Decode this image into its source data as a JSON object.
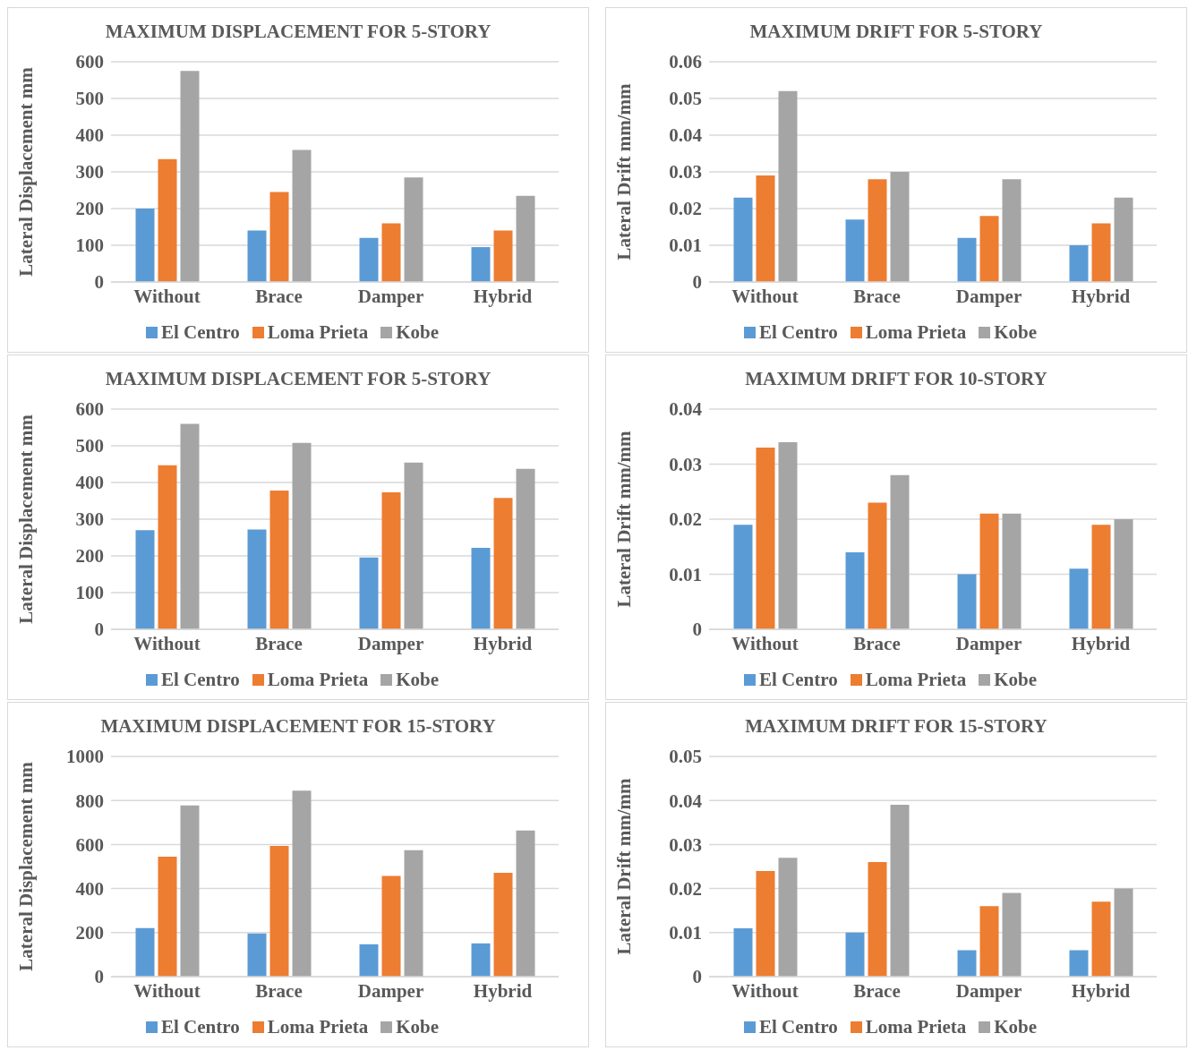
{
  "chart_data": [
    {
      "type": "bar",
      "title": "MAXIMUM DISPLACEMENT FOR 5-STORY",
      "ylabel": "Lateral Displacement mm",
      "categories": [
        "Without",
        "Brace",
        "Damper",
        "Hybrid"
      ],
      "ylim": [
        0,
        600
      ],
      "yticks": [
        0,
        100,
        200,
        300,
        400,
        500,
        600
      ],
      "grid": "y",
      "legend": "bottom",
      "series": [
        {
          "name": "El Centro",
          "color": "#5b9bd5",
          "values": [
            200,
            140,
            120,
            95
          ]
        },
        {
          "name": "Loma Prieta",
          "color": "#ed7d31",
          "values": [
            335,
            245,
            160,
            140
          ]
        },
        {
          "name": "Kobe",
          "color": "#a5a5a5",
          "values": [
            575,
            360,
            285,
            235
          ]
        }
      ]
    },
    {
      "type": "bar",
      "title": "MAXIMUM DRIFT FOR 5-STORY",
      "ylabel": "Lateral Drift  mm/mm",
      "categories": [
        "Without",
        "Brace",
        "Damper",
        "Hybrid"
      ],
      "ylim": [
        0,
        0.06
      ],
      "yticks": [
        0,
        0.01,
        0.02,
        0.03,
        0.04,
        0.05,
        0.06
      ],
      "grid": "y",
      "legend": "bottom",
      "series": [
        {
          "name": "El Centro",
          "color": "#5b9bd5",
          "values": [
            0.023,
            0.017,
            0.012,
            0.01
          ]
        },
        {
          "name": "Loma Prieta",
          "color": "#ed7d31",
          "values": [
            0.029,
            0.028,
            0.018,
            0.016
          ]
        },
        {
          "name": "Kobe",
          "color": "#a5a5a5",
          "values": [
            0.052,
            0.03,
            0.028,
            0.023
          ]
        }
      ]
    },
    {
      "type": "bar",
      "title": "MAXIMUM DISPLACEMENT FOR 5-STORY",
      "ylabel": "Lateral Displacement mm",
      "categories": [
        "Without",
        "Brace",
        "Damper",
        "Hybrid"
      ],
      "ylim": [
        0,
        600
      ],
      "yticks": [
        0,
        100,
        200,
        300,
        400,
        500,
        600
      ],
      "grid": "y",
      "legend": "bottom",
      "series": [
        {
          "name": "El Centro",
          "color": "#5b9bd5",
          "values": [
            270,
            272,
            196,
            222
          ]
        },
        {
          "name": "Loma Prieta",
          "color": "#ed7d31",
          "values": [
            447,
            378,
            373,
            358
          ]
        },
        {
          "name": "Kobe",
          "color": "#a5a5a5",
          "values": [
            560,
            508,
            454,
            437
          ]
        }
      ]
    },
    {
      "type": "bar",
      "title": "MAXIMUM DRIFT FOR 10-STORY",
      "ylabel": "Lateral Drift  mm/mm",
      "categories": [
        "Without",
        "Brace",
        "Damper",
        "Hybrid"
      ],
      "ylim": [
        0,
        0.04
      ],
      "yticks": [
        0,
        0.01,
        0.02,
        0.03,
        0.04
      ],
      "grid": "y",
      "legend": "bottom",
      "series": [
        {
          "name": "El Centro",
          "color": "#5b9bd5",
          "values": [
            0.019,
            0.014,
            0.01,
            0.011
          ]
        },
        {
          "name": "Loma Prieta",
          "color": "#ed7d31",
          "values": [
            0.033,
            0.023,
            0.021,
            0.019
          ]
        },
        {
          "name": "Kobe",
          "color": "#a5a5a5",
          "values": [
            0.034,
            0.028,
            0.021,
            0.02
          ]
        }
      ]
    },
    {
      "type": "bar",
      "title": "MAXIMUM DISPLACEMENT FOR 15-STORY",
      "ylabel": "Lateral Displacement mm",
      "categories": [
        "Without",
        "Brace",
        "Damper",
        "Hybrid"
      ],
      "ylim": [
        0,
        1000
      ],
      "yticks": [
        0,
        200,
        400,
        600,
        800,
        1000
      ],
      "grid": "y",
      "legend": "bottom",
      "series": [
        {
          "name": "El Centro",
          "color": "#5b9bd5",
          "values": [
            221,
            196,
            147,
            151
          ]
        },
        {
          "name": "Loma Prieta",
          "color": "#ed7d31",
          "values": [
            545,
            594,
            457,
            472
          ]
        },
        {
          "name": "Kobe",
          "color": "#a5a5a5",
          "values": [
            777,
            845,
            574,
            664
          ]
        }
      ]
    },
    {
      "type": "bar",
      "title": "MAXIMUM DRIFT FOR 15-STORY",
      "ylabel": "Lateral Drift  mm/mm",
      "categories": [
        "Without",
        "Brace",
        "Damper",
        "Hybrid"
      ],
      "ylim": [
        0,
        0.05
      ],
      "yticks": [
        0,
        0.01,
        0.02,
        0.03,
        0.04,
        0.05
      ],
      "grid": "y",
      "legend": "bottom",
      "series": [
        {
          "name": "El Centro",
          "color": "#5b9bd5",
          "values": [
            0.011,
            0.01,
            0.006,
            0.006
          ]
        },
        {
          "name": "Loma Prieta",
          "color": "#ed7d31",
          "values": [
            0.024,
            0.026,
            0.016,
            0.017
          ]
        },
        {
          "name": "Kobe",
          "color": "#a5a5a5",
          "values": [
            0.027,
            0.039,
            0.019,
            0.02
          ]
        }
      ]
    }
  ]
}
